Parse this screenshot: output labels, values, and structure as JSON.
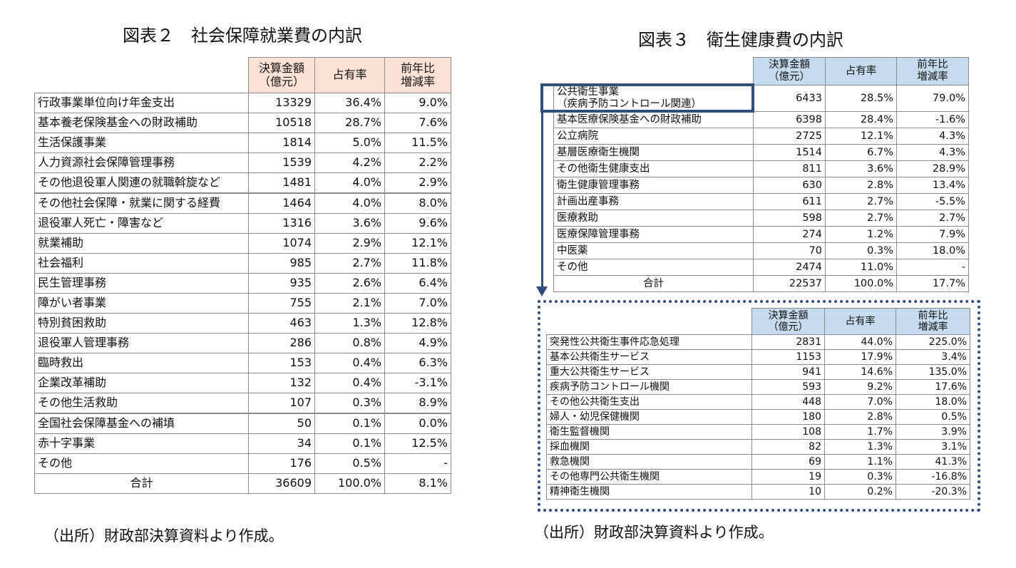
{
  "fig2": {
    "title": "図表２　社会保障就業費の内訳",
    "headers": [
      "決算金額\n（億元）",
      "占有率",
      "前年比\n増減率"
    ],
    "rows": [
      [
        "行政事業単位向け年金支出",
        "13329",
        "36.4%",
        "9.0%"
      ],
      [
        "基本養老保険基金への財政補助",
        "10518",
        "28.7%",
        "7.6%"
      ],
      [
        "生活保護事業",
        "1814",
        "5.0%",
        "11.5%"
      ],
      [
        "人力資源社会保障管理事務",
        "1539",
        "4.2%",
        "2.2%"
      ],
      [
        "その他退役軍人関連の就職斡旋など",
        "1481",
        "4.0%",
        "2.9%"
      ],
      [
        "その他社会保障・就業に関する経費",
        "1464",
        "4.0%",
        "8.0%"
      ],
      [
        "退役軍人死亡・障害など",
        "1316",
        "3.6%",
        "9.6%"
      ],
      [
        "就業補助",
        "1074",
        "2.9%",
        "12.1%"
      ],
      [
        "社会福利",
        "985",
        "2.7%",
        "11.8%"
      ],
      [
        "民生管理事務",
        "935",
        "2.6%",
        "6.4%"
      ],
      [
        "障がい者事業",
        "755",
        "2.1%",
        "7.0%"
      ],
      [
        "特別貧困救助",
        "463",
        "1.3%",
        "12.8%"
      ],
      [
        "退役軍人管理事務",
        "286",
        "0.8%",
        "4.9%"
      ],
      [
        "臨時救出",
        "153",
        "0.4%",
        "6.3%"
      ],
      [
        "企業改革補助",
        "132",
        "0.4%",
        "-3.1%"
      ],
      [
        "その他生活救助",
        "107",
        "0.3%",
        "8.9%"
      ],
      [
        "全国社会保障基金への補填",
        "50",
        "0.1%",
        "0.0%"
      ],
      [
        "赤十字事業",
        "34",
        "0.1%",
        "12.5%"
      ],
      [
        "その他",
        "176",
        "0.5%",
        "-"
      ],
      [
        "合計",
        "36609",
        "100.0%",
        "8.1%"
      ]
    ],
    "source": "（出所）財政部決算資料より作成。"
  },
  "fig3": {
    "title": "図表３　衛生健康費の内訳",
    "headers": [
      "決算金額\n（億元）",
      "占有率",
      "前年比\n増減率"
    ],
    "rows": [
      [
        "公共衛生事業\n（疾病予防コントロール関連）",
        "6433",
        "28.5%",
        "79.0%"
      ],
      [
        "基本医療保険基金への財政補助",
        "6398",
        "28.4%",
        "-1.6%"
      ],
      [
        "公立病院",
        "2725",
        "12.1%",
        "4.3%"
      ],
      [
        "基層医療衛生機関",
        "1514",
        "6.7%",
        "4.3%"
      ],
      [
        "その他衛生健康支出",
        "811",
        "3.6%",
        "28.9%"
      ],
      [
        "衛生健康管理事務",
        "630",
        "2.8%",
        "13.4%"
      ],
      [
        "計画出産事務",
        "611",
        "2.7%",
        "-5.5%"
      ],
      [
        "医療救助",
        "598",
        "2.7%",
        "2.7%"
      ],
      [
        "医療保障管理事務",
        "274",
        "1.2%",
        "7.9%"
      ],
      [
        "中医薬",
        "70",
        "0.3%",
        "18.0%"
      ],
      [
        "その他",
        "2474",
        "11.0%",
        "-"
      ],
      [
        "合計",
        "22537",
        "100.0%",
        "17.7%"
      ]
    ],
    "sub_headers": [
      "決算金額\n（億元）",
      "占有率",
      "前年比\n増減率"
    ],
    "sub_rows": [
      [
        "突発性公共衛生事件応急処理",
        "2831",
        "44.0%",
        "225.0%"
      ],
      [
        "基本公共衛生サービス",
        "1153",
        "17.9%",
        "3.4%"
      ],
      [
        "重大公共衛生サービス",
        "941",
        "14.6%",
        "135.0%"
      ],
      [
        "疾病予防コントロール機関",
        "593",
        "9.2%",
        "17.6%"
      ],
      [
        "その他公共衛生支出",
        "448",
        "7.0%",
        "18.0%"
      ],
      [
        "婦人・幼児保健機関",
        "180",
        "2.8%",
        "0.5%"
      ],
      [
        "衛生監督機関",
        "108",
        "1.7%",
        "3.9%"
      ],
      [
        "採血機関",
        "82",
        "1.3%",
        "3.1%"
      ],
      [
        "救急機関",
        "69",
        "1.1%",
        "41.3%"
      ],
      [
        "その他専門公共衛生機関",
        "19",
        "0.3%",
        "-16.8%"
      ],
      [
        "精神衛生機関",
        "10",
        "0.2%",
        "-20.3%"
      ]
    ],
    "source": "（出所）財政部決算資料より作成。",
    "accent_color": "#2f4f7c",
    "header_color": "#c5dcf0"
  },
  "fig2_header_color": "#fbe2d5"
}
